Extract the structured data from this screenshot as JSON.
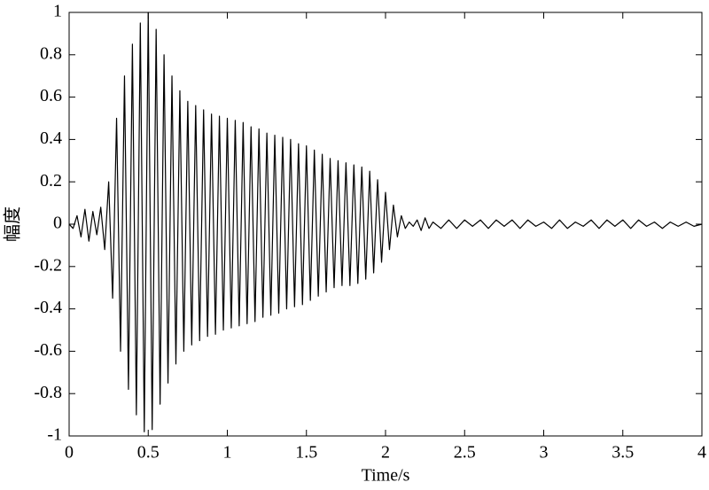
{
  "chart_data": {
    "type": "line",
    "xlabel": "Time/s",
    "ylabel": "幅度",
    "color": "#000000",
    "x": [
      0,
      0.025,
      0.05,
      0.075,
      0.1,
      0.125,
      0.15,
      0.175,
      0.2,
      0.225,
      0.25,
      0.275,
      0.3,
      0.325,
      0.35,
      0.375,
      0.4,
      0.425,
      0.45,
      0.475,
      0.5,
      0.525,
      0.55,
      0.575,
      0.6,
      0.625,
      0.65,
      0.675,
      0.7,
      0.725,
      0.75,
      0.775,
      0.8,
      0.825,
      0.85,
      0.875,
      0.9,
      0.925,
      0.95,
      0.975,
      1.0,
      1.025,
      1.05,
      1.075,
      1.1,
      1.125,
      1.15,
      1.175,
      1.2,
      1.225,
      1.25,
      1.275,
      1.3,
      1.325,
      1.35,
      1.375,
      1.4,
      1.425,
      1.45,
      1.475,
      1.5,
      1.525,
      1.55,
      1.575,
      1.6,
      1.625,
      1.65,
      1.675,
      1.7,
      1.725,
      1.75,
      1.775,
      1.8,
      1.825,
      1.85,
      1.875,
      1.9,
      1.925,
      1.95,
      1.975,
      2.0,
      2.025,
      2.05,
      2.075,
      2.1,
      2.125,
      2.15,
      2.175,
      2.2,
      2.225,
      2.25,
      2.275,
      2.3,
      2.35,
      2.4,
      2.45,
      2.5,
      2.55,
      2.6,
      2.65,
      2.7,
      2.75,
      2.8,
      2.85,
      2.9,
      2.95,
      3.0,
      3.05,
      3.1,
      3.15,
      3.2,
      3.25,
      3.3,
      3.35,
      3.4,
      3.45,
      3.5,
      3.55,
      3.6,
      3.65,
      3.7,
      3.75,
      3.8,
      3.85,
      3.9,
      3.95,
      4.0
    ],
    "values": [
      0,
      -0.02,
      0.04,
      -0.06,
      0.07,
      -0.08,
      0.06,
      -0.05,
      0.08,
      -0.12,
      0.2,
      -0.35,
      0.5,
      -0.6,
      0.7,
      -0.78,
      0.85,
      -0.9,
      0.95,
      -0.98,
      1,
      -0.97,
      0.92,
      -0.85,
      0.8,
      -0.75,
      0.7,
      -0.66,
      0.63,
      -0.6,
      0.58,
      -0.57,
      0.56,
      -0.55,
      0.54,
      -0.53,
      0.52,
      -0.52,
      0.51,
      -0.5,
      0.5,
      -0.49,
      0.49,
      -0.48,
      0.48,
      -0.47,
      0.46,
      -0.46,
      0.45,
      -0.44,
      0.43,
      -0.43,
      0.42,
      -0.42,
      0.41,
      -0.4,
      0.4,
      -0.39,
      0.38,
      -0.38,
      0.37,
      -0.36,
      0.35,
      -0.34,
      0.33,
      -0.32,
      0.31,
      -0.3,
      0.3,
      -0.29,
      0.29,
      -0.29,
      0.28,
      -0.28,
      0.27,
      -0.26,
      0.25,
      -0.23,
      0.21,
      -0.18,
      0.15,
      -0.12,
      0.09,
      -0.06,
      0.04,
      -0.02,
      0.01,
      -0.01,
      0.02,
      -0.03,
      0.03,
      -0.02,
      0.01,
      -0.02,
      0.02,
      -0.02,
      0.02,
      -0.01,
      0.02,
      -0.02,
      0.02,
      -0.01,
      0.02,
      -0.02,
      0.02,
      -0.01,
      0.01,
      -0.02,
      0.02,
      -0.02,
      0.01,
      -0.01,
      0.02,
      -0.02,
      0.02,
      -0.01,
      0.02,
      -0.02,
      0.02,
      -0.01,
      0.01,
      -0.02,
      0.01,
      -0.01,
      0.01,
      -0.01,
      0
    ],
    "xlim": [
      0,
      4
    ],
    "xticks": [
      0,
      0.5,
      1,
      1.5,
      2,
      2.5,
      3,
      3.5,
      4
    ],
    "ylim": [
      -1,
      1
    ],
    "yticks": [
      -1,
      -0.8,
      -0.6,
      -0.4,
      -0.2,
      0,
      0.2,
      0.4,
      0.6,
      0.8,
      1
    ]
  }
}
